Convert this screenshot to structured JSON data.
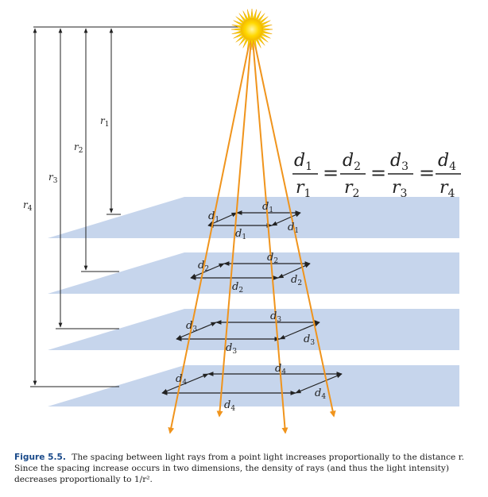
{
  "figure": {
    "r_labels": [
      {
        "base": "r",
        "sub": "1"
      },
      {
        "base": "r",
        "sub": "2"
      },
      {
        "base": "r",
        "sub": "3"
      },
      {
        "base": "r",
        "sub": "4"
      }
    ],
    "d_labels": [
      {
        "base": "d",
        "sub": "1"
      },
      {
        "base": "d",
        "sub": "2"
      },
      {
        "base": "d",
        "sub": "3"
      },
      {
        "base": "d",
        "sub": "4"
      }
    ],
    "equation": {
      "terms": [
        {
          "num": "d",
          "num_sub": "1",
          "den": "r",
          "den_sub": "1"
        },
        {
          "num": "d",
          "num_sub": "2",
          "den": "r",
          "den_sub": "2"
        },
        {
          "num": "d",
          "num_sub": "3",
          "den": "r",
          "den_sub": "3"
        },
        {
          "num": "d",
          "num_sub": "4",
          "den": "r",
          "den_sub": "4"
        }
      ],
      "operator": "="
    },
    "colors": {
      "plane": "#c6d5ec",
      "ray": "#f0941c",
      "sun_outer": "#f5d400",
      "sun_inner": "#ffe64d",
      "line": "#222222"
    }
  },
  "caption": {
    "label": "Figure 5.5.",
    "text": "The spacing between light rays from a point light increases proportionally to the distance r. Since the spacing increase occurs in two dimensions, the density of rays (and thus the light intensity) decreases proportionally to 1/r²."
  }
}
